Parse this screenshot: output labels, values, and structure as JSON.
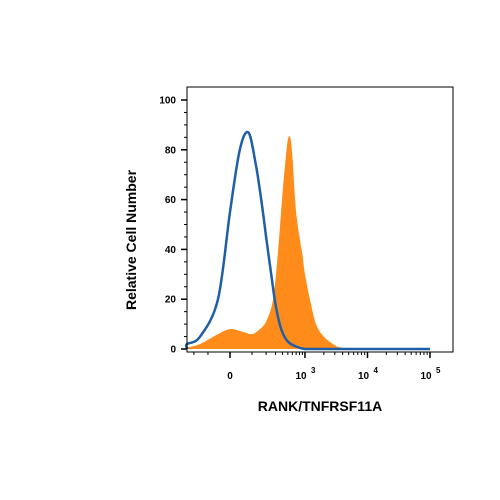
{
  "chart_data": {
    "type": "area",
    "xlabel": "RANK/TNFRSF11A",
    "ylabel": "Relative Cell Number",
    "x_scale": "biexponential",
    "ylim": [
      0,
      100
    ],
    "y_ticks": [
      "0",
      "20",
      "40",
      "60",
      "80",
      "100"
    ],
    "x_ticks": [
      {
        "base": "0",
        "exp": ""
      },
      {
        "base": "10",
        "exp": "3"
      },
      {
        "base": "10",
        "exp": "4"
      },
      {
        "base": "10",
        "exp": "5"
      }
    ],
    "series": [
      {
        "style": "line",
        "color": "#1f5fa8",
        "x": [
          -700,
          -500,
          -300,
          -150,
          -50,
          0,
          40,
          80,
          120,
          160,
          200,
          250,
          300,
          380,
          500,
          700,
          1000,
          1500,
          3000,
          10000,
          100000
        ],
        "y": [
          0,
          0.5,
          2,
          5,
          20,
          55,
          80,
          87,
          75,
          60,
          45,
          30,
          18,
          8,
          3,
          1,
          0,
          0,
          0,
          0,
          0
        ]
      },
      {
        "style": "filled",
        "color": "#ff8c1a",
        "x": [
          -700,
          -300,
          -150,
          -50,
          0,
          50,
          100,
          150,
          200,
          260,
          300,
          350,
          400,
          450,
          500,
          550,
          600,
          650,
          700,
          800,
          900,
          1000,
          1200,
          1500,
          2000,
          3000,
          4000,
          10000,
          100000
        ],
        "y": [
          0,
          0.5,
          2,
          6,
          8,
          7,
          6,
          8,
          11,
          18,
          28,
          45,
          62,
          75,
          84,
          85,
          78,
          65,
          55,
          45,
          38,
          30,
          20,
          10,
          5,
          1.5,
          0.5,
          0,
          0
        ]
      }
    ]
  }
}
